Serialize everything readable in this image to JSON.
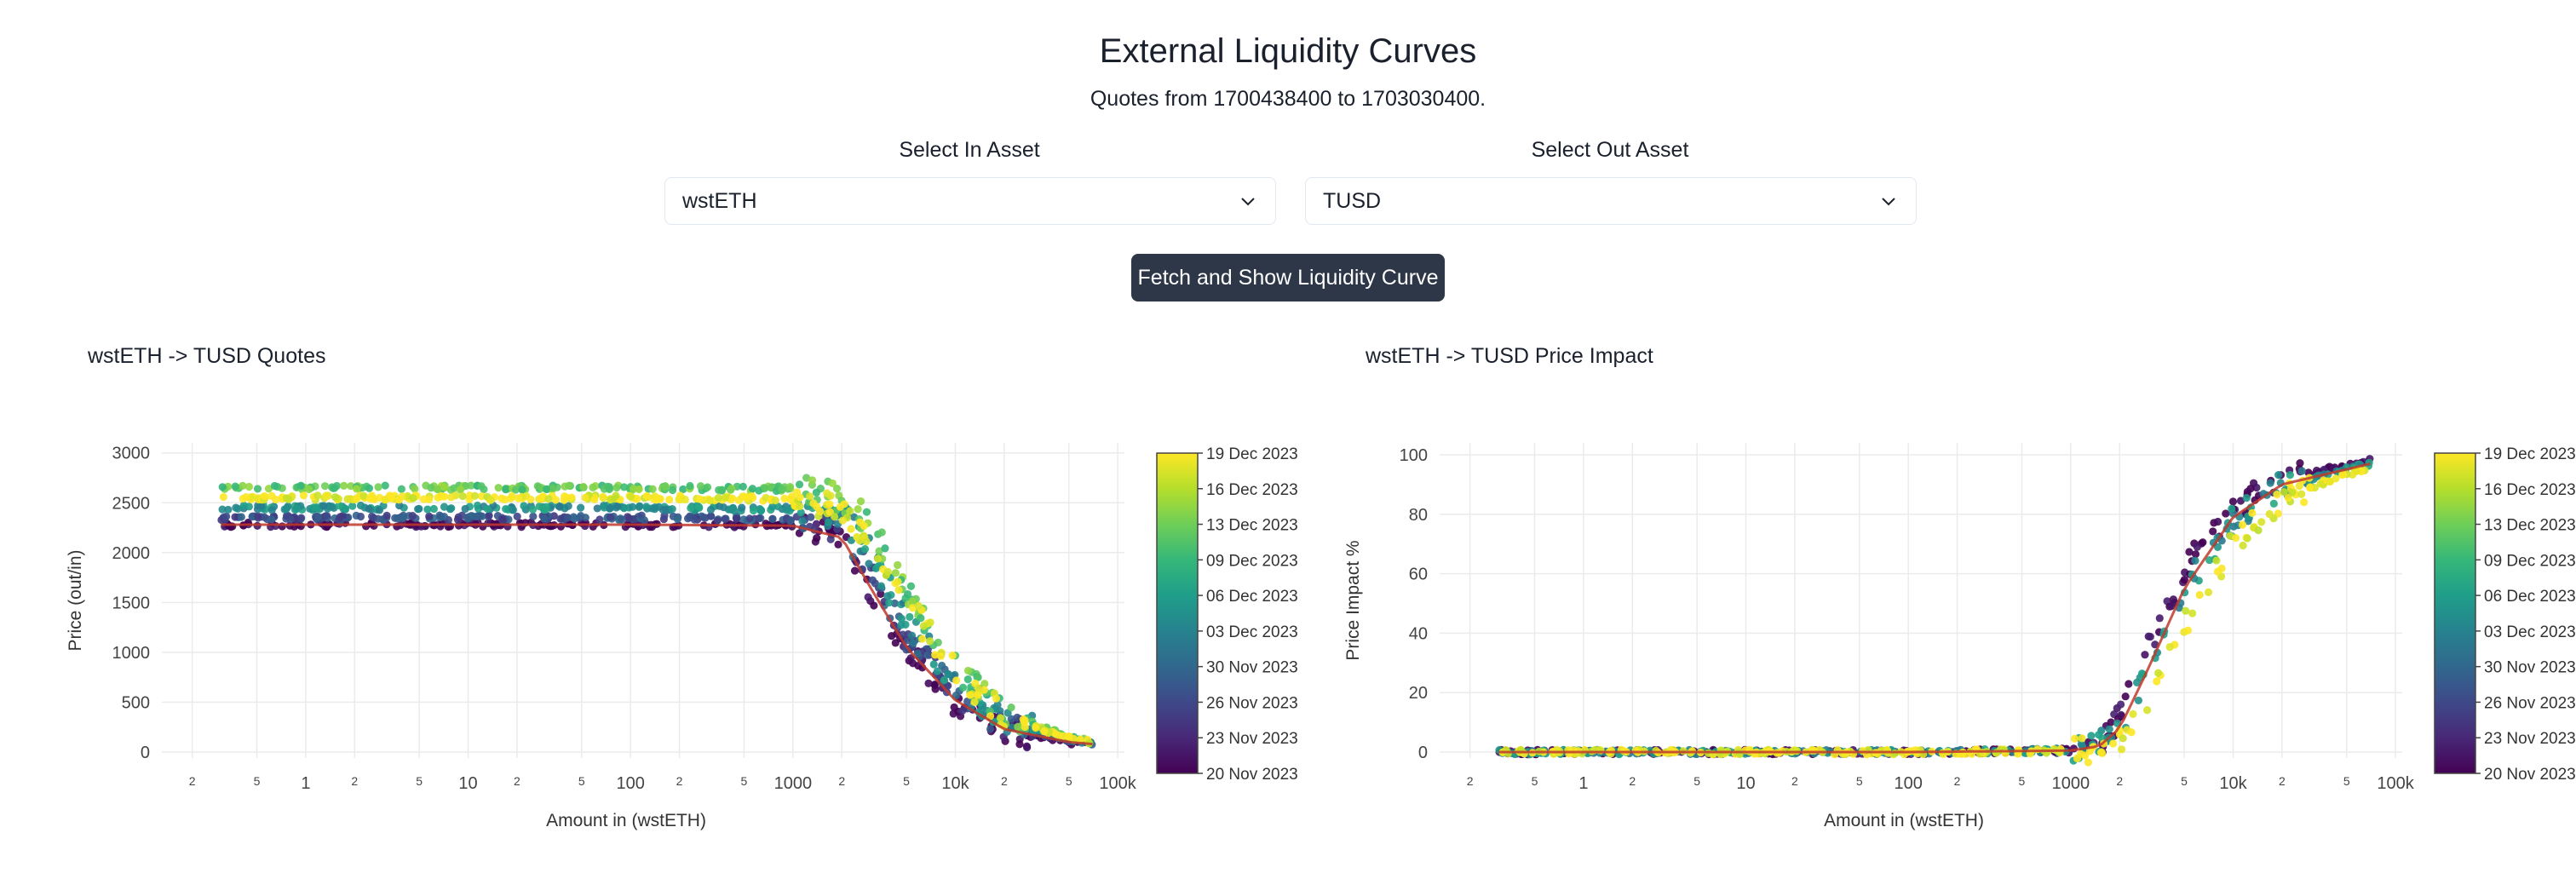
{
  "page": {
    "title": "External Liquidity Curves",
    "subtitle": "Quotes from 1700438400 to 1703030400."
  },
  "selects": {
    "in_label": "Select In Asset",
    "in_value": "wstETH",
    "out_label": "Select Out Asset",
    "out_value": "TUSD"
  },
  "fetch_button": {
    "label": "Fetch and Show Liquidity Curve"
  },
  "icons": {
    "select_chevron": "chevron-down-icon"
  },
  "colors": {
    "button_bg": "#2d3748",
    "fit_line": "#c0392b"
  },
  "chart_data": [
    {
      "type": "scatter",
      "title": "wstETH -> TUSD Quotes",
      "xlabel": "Amount in (wstETH)",
      "ylabel": "Price (out/in)",
      "xscale": "log",
      "xlim": [
        0.13,
        110000
      ],
      "ylim": [
        -60,
        3100
      ],
      "yticks": [
        0,
        500,
        1000,
        1500,
        2000,
        2500,
        3000
      ],
      "xticks": [
        {
          "v": 0.2,
          "label": "2"
        },
        {
          "v": 0.5,
          "label": "5"
        },
        {
          "v": 1,
          "label": "1"
        },
        {
          "v": 2,
          "label": "2"
        },
        {
          "v": 5,
          "label": "5"
        },
        {
          "v": 10,
          "label": "10"
        },
        {
          "v": 20,
          "label": "2"
        },
        {
          "v": 50,
          "label": "5"
        },
        {
          "v": 100,
          "label": "100"
        },
        {
          "v": 200,
          "label": "2"
        },
        {
          "v": 500,
          "label": "5"
        },
        {
          "v": 1000,
          "label": "1000"
        },
        {
          "v": 2000,
          "label": "2"
        },
        {
          "v": 5000,
          "label": "5"
        },
        {
          "v": 10000,
          "label": "10k"
        },
        {
          "v": 20000,
          "label": "2"
        },
        {
          "v": 50000,
          "label": "5"
        },
        {
          "v": 100000,
          "label": "100k"
        }
      ],
      "colorbar_ticks": [
        "19 Dec 2023",
        "16 Dec 2023",
        "13 Dec 2023",
        "09 Dec 2023",
        "06 Dec 2023",
        "03 Dec 2023",
        "30 Nov 2023",
        "26 Nov 2023",
        "23 Nov 2023",
        "20 Nov 2023"
      ],
      "colorscale": "viridis",
      "series": [
        {
          "date_index": 0,
          "x": [
            0.3,
            1,
            10,
            100,
            1000,
            2000,
            3000,
            5000,
            10000,
            20000,
            50000,
            70000
          ],
          "y": [
            2280,
            2280,
            2280,
            2280,
            2270,
            2150,
            1650,
            1050,
            500,
            230,
            100,
            80
          ]
        },
        {
          "date_index": 0.25,
          "x": [
            0.3,
            1,
            10,
            100,
            1000,
            2000,
            3000,
            5000,
            10000,
            20000,
            50000,
            70000
          ],
          "y": [
            2350,
            2350,
            2350,
            2350,
            2340,
            2250,
            1800,
            1150,
            600,
            280,
            120,
            90
          ]
        },
        {
          "date_index": 0.5,
          "x": [
            0.3,
            1,
            10,
            100,
            1000,
            2000,
            3000,
            5000,
            10000,
            20000,
            50000,
            70000
          ],
          "y": [
            2450,
            2450,
            2450,
            2450,
            2440,
            2380,
            2000,
            1300,
            700,
            320,
            130,
            95
          ]
        },
        {
          "date_index": 0.75,
          "x": [
            0.3,
            1,
            10,
            100,
            1000,
            2000,
            3000,
            5000,
            10000,
            20000,
            50000,
            70000
          ],
          "y": [
            2650,
            2650,
            2650,
            2650,
            2640,
            2550,
            2300,
            1600,
            850,
            380,
            150,
            100
          ]
        },
        {
          "date_index": 1,
          "x": [
            0.3,
            1,
            10,
            100,
            1000,
            2000,
            3000,
            5000,
            10000,
            20000,
            50000,
            70000
          ],
          "y": [
            2550,
            2550,
            2550,
            2550,
            2540,
            2450,
            2150,
            1500,
            800,
            360,
            140,
            100
          ]
        }
      ],
      "fit_line": {
        "x": [
          0.3,
          1,
          10,
          100,
          1000,
          2000,
          3000,
          5000,
          10000,
          20000,
          50000,
          70000
        ],
        "y": [
          2280,
          2280,
          2280,
          2280,
          2270,
          2150,
          1650,
          1050,
          520,
          230,
          100,
          80
        ]
      }
    },
    {
      "type": "scatter",
      "title": "wstETH -> TUSD Price Impact",
      "xlabel": "Amount in (wstETH)",
      "ylabel": "Price Impact %",
      "xscale": "log",
      "xlim": [
        0.13,
        110000
      ],
      "ylim": [
        -2,
        104
      ],
      "yticks": [
        0,
        20,
        40,
        60,
        80,
        100
      ],
      "xticks": [
        {
          "v": 0.2,
          "label": "2"
        },
        {
          "v": 0.5,
          "label": "5"
        },
        {
          "v": 1,
          "label": "1"
        },
        {
          "v": 2,
          "label": "2"
        },
        {
          "v": 5,
          "label": "5"
        },
        {
          "v": 10,
          "label": "10"
        },
        {
          "v": 20,
          "label": "2"
        },
        {
          "v": 50,
          "label": "5"
        },
        {
          "v": 100,
          "label": "100"
        },
        {
          "v": 200,
          "label": "2"
        },
        {
          "v": 500,
          "label": "5"
        },
        {
          "v": 1000,
          "label": "1000"
        },
        {
          "v": 2000,
          "label": "2"
        },
        {
          "v": 5000,
          "label": "5"
        },
        {
          "v": 10000,
          "label": "10k"
        },
        {
          "v": 20000,
          "label": "2"
        },
        {
          "v": 50000,
          "label": "5"
        },
        {
          "v": 100000,
          "label": "100k"
        }
      ],
      "colorbar_ticks": [
        "19 Dec 2023",
        "16 Dec 2023",
        "13 Dec 2023",
        "09 Dec 2023",
        "06 Dec 2023",
        "03 Dec 2023",
        "30 Nov 2023",
        "26 Nov 2023",
        "23 Nov 2023",
        "20 Nov 2023"
      ],
      "colorscale": "viridis",
      "series": [
        {
          "date_index": 0,
          "x": [
            0.3,
            1,
            10,
            100,
            1000,
            1500,
            2000,
            3000,
            5000,
            10000,
            20000,
            70000
          ],
          "y": [
            0,
            0,
            0,
            0,
            0.5,
            3,
            12,
            35,
            62,
            82,
            92,
            98
          ]
        },
        {
          "date_index": 0.5,
          "x": [
            0.3,
            1,
            10,
            100,
            1000,
            1500,
            2000,
            3000,
            5000,
            10000,
            20000,
            70000
          ],
          "y": [
            0,
            0,
            0,
            0,
            0.5,
            2,
            8,
            28,
            55,
            78,
            90,
            97
          ]
        },
        {
          "date_index": 1,
          "x": [
            0.3,
            1,
            10,
            100,
            1000,
            1500,
            2000,
            3000,
            5000,
            10000,
            20000,
            70000
          ],
          "y": [
            0,
            0,
            0,
            0,
            0.3,
            1,
            4,
            18,
            42,
            70,
            86,
            96
          ]
        }
      ],
      "fit_line": {
        "x": [
          0.3,
          1,
          10,
          100,
          1000,
          1500,
          2000,
          3000,
          5000,
          10000,
          20000,
          70000
        ],
        "y": [
          0,
          0,
          0,
          0,
          0.5,
          2,
          8,
          28,
          55,
          79,
          90,
          97
        ]
      }
    }
  ]
}
